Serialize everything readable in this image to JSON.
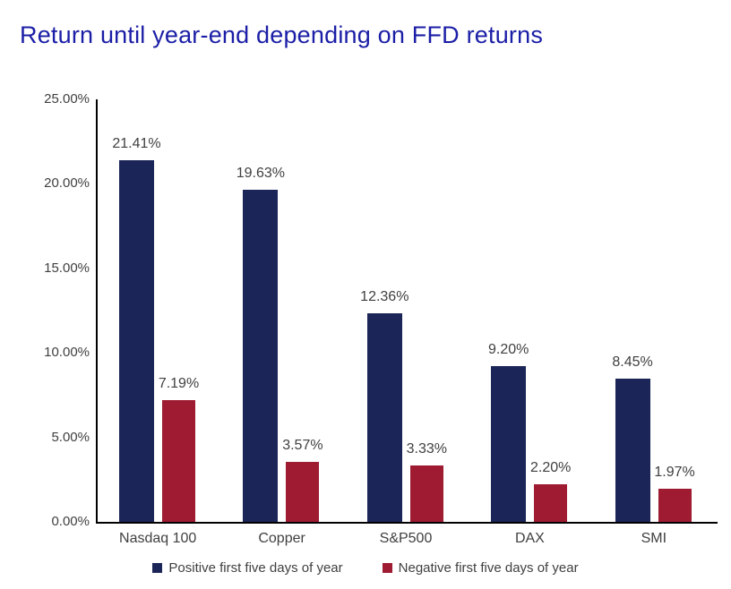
{
  "title": "Return until year-end depending on FFD returns",
  "colors": {
    "title": "#1B1EA6",
    "positive": "#1B2557",
    "negative": "#9E1B32",
    "axis": "#000000",
    "label_text": "#404040"
  },
  "chart_data": {
    "type": "bar",
    "title": "Return until year-end depending on FFD returns",
    "categories": [
      "Nasdaq 100",
      "Copper",
      "S&P500",
      "DAX",
      "SMI"
    ],
    "series": [
      {
        "name": "Positive first five days of year",
        "color": "#1B2557",
        "values": [
          21.41,
          19.63,
          12.36,
          9.2,
          8.45
        ],
        "labels": [
          "21.41%",
          "19.63%",
          "12.36%",
          "9.20%",
          "8.45%"
        ]
      },
      {
        "name": "Negative first five days of year",
        "color": "#9E1B32",
        "values": [
          7.19,
          3.57,
          3.33,
          2.2,
          1.97
        ],
        "labels": [
          "7.19%",
          "3.57%",
          "3.33%",
          "2.20%",
          "1.97%"
        ]
      }
    ],
    "xlabel": "",
    "ylabel": "",
    "ylim": [
      0,
      25
    ],
    "ytick_step": 5,
    "ytick_labels": [
      "0.00%",
      "5.00%",
      "10.00%",
      "15.00%",
      "20.00%",
      "25.00%"
    ],
    "grid": false,
    "legend_position": "bottom"
  }
}
